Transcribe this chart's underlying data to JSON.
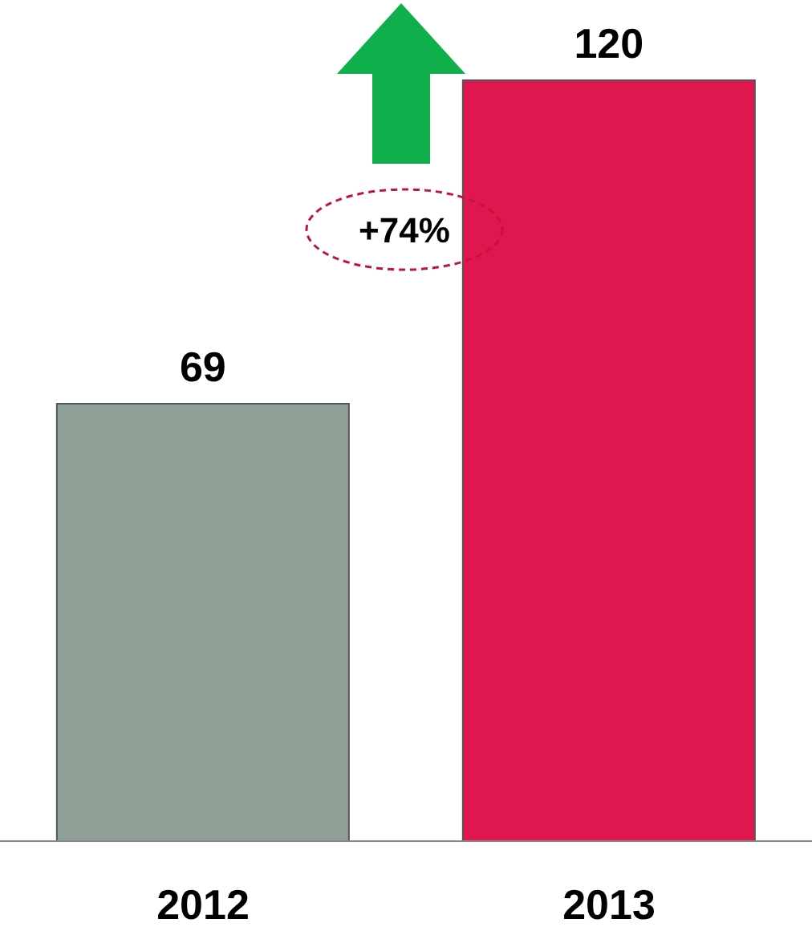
{
  "chart_data": {
    "type": "bar",
    "categories": [
      "2012",
      "2013"
    ],
    "values": [
      69,
      120
    ],
    "colors": [
      "#8fa097",
      "#e0174f"
    ],
    "data_labels": true,
    "annotations": [
      "+74%"
    ]
  }
}
